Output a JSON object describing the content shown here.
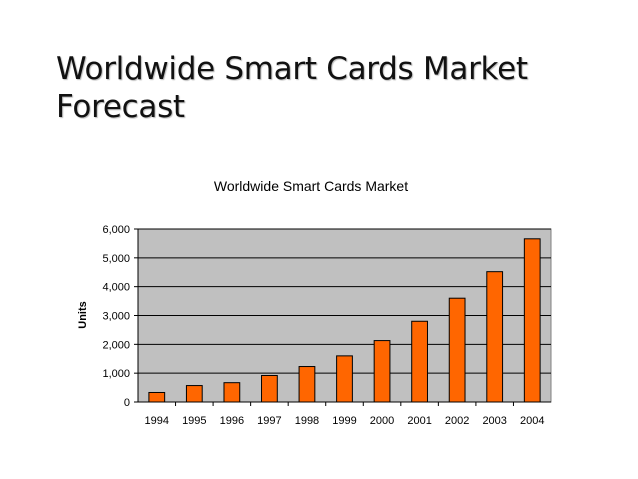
{
  "slide": {
    "title_line1": "Worldwide Smart Cards Market",
    "title_line2": "Forecast"
  },
  "chart_data": {
    "type": "bar",
    "title": "Worldwide Smart Cards Market",
    "xlabel": "",
    "ylabel": "Units",
    "categories": [
      "1994",
      "1995",
      "1996",
      "1997",
      "1998",
      "1999",
      "2000",
      "2001",
      "2002",
      "2003",
      "2004"
    ],
    "values": [
      330,
      570,
      670,
      920,
      1230,
      1600,
      2130,
      2800,
      3600,
      4520,
      5660
    ],
    "ylim": [
      0,
      6000
    ],
    "yticks": [
      0,
      1000,
      2000,
      3000,
      4000,
      5000,
      6000
    ],
    "ytick_labels": [
      "0",
      "1,000",
      "2,000",
      "3,000",
      "4,000",
      "5,000",
      "6,000"
    ],
    "grid": true,
    "colors": {
      "bar": "#ff6600",
      "bar_stroke": "#000000",
      "plot_background": "#c0c0c0",
      "gridline": "#000000"
    }
  }
}
